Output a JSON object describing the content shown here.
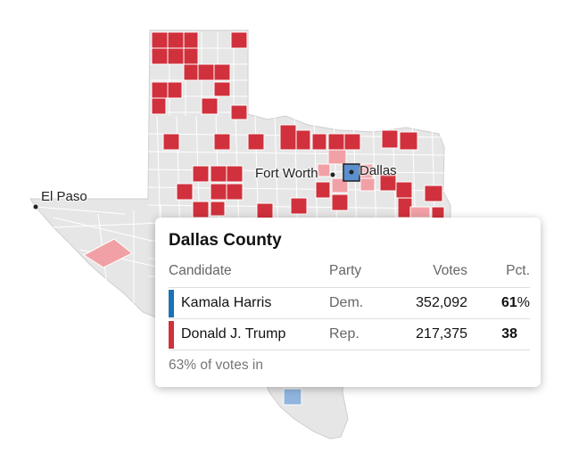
{
  "map": {
    "colors": {
      "state_fill": "#e6e6e6",
      "county_line": "#ffffff",
      "rep_strong": "#d0313c",
      "rep_light": "#f1a1a6",
      "dem_light": "#8fb5de",
      "highlight_fill": "#5b8fcf",
      "highlight_border": "#222222"
    },
    "cities": [
      {
        "name": "El Paso"
      },
      {
        "name": "Fort Worth"
      },
      {
        "name": "Dallas"
      }
    ]
  },
  "tooltip": {
    "county": "Dallas County",
    "headers": {
      "candidate": "Candidate",
      "party": "Party",
      "votes": "Votes",
      "pct": "Pct."
    },
    "rows": [
      {
        "candidate": "Kamala Harris",
        "party": "Dem.",
        "votes": "352,092",
        "pct": "61",
        "pct_suffix": "%",
        "color": "#1a73b8"
      },
      {
        "candidate": "Donald J. Trump",
        "party": "Rep.",
        "votes": "217,375",
        "pct": "38",
        "pct_suffix": "",
        "color": "#d0313c"
      }
    ],
    "footer": "63% of votes in"
  }
}
